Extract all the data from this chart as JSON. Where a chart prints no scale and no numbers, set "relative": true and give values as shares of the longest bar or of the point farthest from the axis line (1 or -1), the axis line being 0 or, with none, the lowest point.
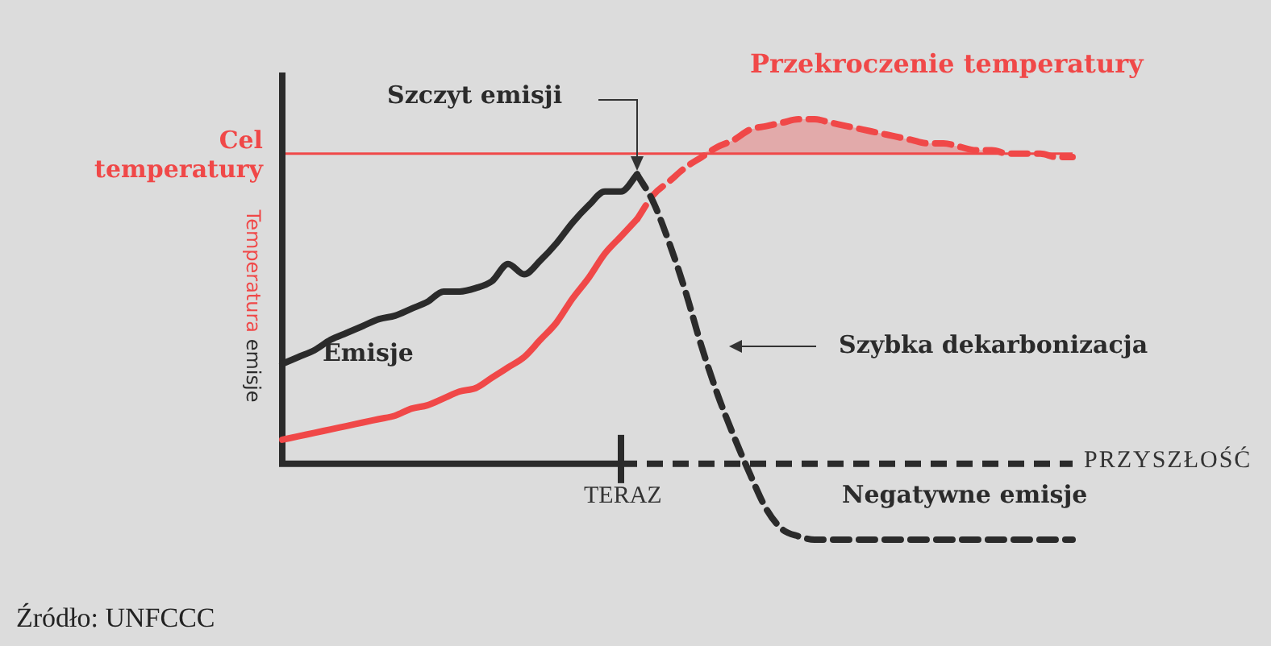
{
  "chart_data": {
    "type": "line",
    "relative": true,
    "ylabel": "Temperatura emisje",
    "xlabel": "PRZYSZŁOŚĆ",
    "categories": [
      null,
      null,
      null,
      null,
      null,
      null,
      null,
      null,
      null,
      null,
      null,
      null,
      null,
      null,
      null,
      null,
      null,
      null,
      null,
      null,
      null,
      null,
      null,
      null,
      null,
      null,
      null,
      null,
      null,
      null,
      null,
      null,
      null,
      null,
      null,
      null,
      null,
      null,
      null,
      null,
      null,
      null,
      null,
      null,
      null,
      null,
      null,
      null,
      null,
      null
    ],
    "series": [
      {
        "name": "Emisje",
        "color": "#2b2b2b",
        "line_style": "solid",
        "values": [
          0.29,
          0.31,
          0.33,
          0.36,
          0.38,
          0.4,
          0.42,
          0.43,
          0.45,
          0.47,
          0.5,
          0.5,
          0.51,
          0.53,
          0.58,
          0.55,
          0.59,
          0.64,
          0.7,
          0.75,
          0.79,
          0.79,
          0.84,
          null,
          null,
          null,
          null,
          null,
          null,
          null,
          null,
          null,
          null,
          null,
          null,
          null,
          null,
          null,
          null,
          null,
          null,
          null,
          null,
          null,
          null,
          null,
          null,
          null,
          null,
          null
        ]
      },
      {
        "color": "#2b2b2b",
        "line_style": "dashed",
        "values": [
          null,
          null,
          null,
          null,
          null,
          null,
          null,
          null,
          null,
          null,
          null,
          null,
          null,
          null,
          null,
          null,
          null,
          null,
          null,
          null,
          null,
          null,
          0.84,
          0.76,
          0.64,
          0.5,
          0.34,
          0.2,
          0.08,
          -0.03,
          -0.13,
          -0.19,
          -0.21,
          -0.22,
          -0.22,
          -0.22,
          -0.22,
          -0.22,
          -0.22,
          -0.22,
          -0.22,
          -0.22,
          -0.22,
          -0.22,
          -0.22,
          -0.22,
          -0.22,
          -0.22,
          -0.22,
          -0.22
        ]
      },
      {
        "color": "#f04848",
        "line_style": "solid",
        "values": [
          0.07,
          0.08,
          0.09,
          0.1,
          0.11,
          0.12,
          0.13,
          0.14,
          0.16,
          0.17,
          0.19,
          0.21,
          0.22,
          0.25,
          0.28,
          0.31,
          0.36,
          0.41,
          0.48,
          0.54,
          0.61,
          0.66,
          0.71,
          null,
          null,
          null,
          null,
          null,
          null,
          null,
          null,
          null,
          null,
          null,
          null,
          null,
          null,
          null,
          null,
          null,
          null,
          null,
          null,
          null,
          null,
          null,
          null,
          null,
          null,
          null
        ]
      },
      {
        "color": "#f04848",
        "line_style": "dashed",
        "values": [
          null,
          null,
          null,
          null,
          null,
          null,
          null,
          null,
          null,
          null,
          null,
          null,
          null,
          null,
          null,
          null,
          null,
          null,
          null,
          null,
          null,
          null,
          0.71,
          0.78,
          0.82,
          0.86,
          0.89,
          0.92,
          0.94,
          0.97,
          0.98,
          0.99,
          1.0,
          1.0,
          0.99,
          0.98,
          0.97,
          0.96,
          0.95,
          0.94,
          0.93,
          0.93,
          0.92,
          0.91,
          0.91,
          0.9,
          0.9,
          0.9,
          0.89,
          0.89
        ],
        "lower": [
          null,
          null,
          null,
          null,
          null,
          null,
          null,
          null,
          null,
          null,
          null,
          null,
          null,
          null,
          null,
          null,
          null,
          null,
          null,
          null,
          null,
          null,
          null,
          null,
          null,
          null,
          0.9,
          0.9,
          0.9,
          0.9,
          0.9,
          0.9,
          0.9,
          0.9,
          0.9,
          0.9,
          0.9,
          0.9,
          0.9,
          0.9,
          0.9,
          0.9,
          0.9,
          0.9,
          0.9,
          0.9,
          null,
          null,
          null,
          null
        ],
        "upper": [
          null,
          null,
          null,
          null,
          null,
          null,
          null,
          null,
          null,
          null,
          null,
          null,
          null,
          null,
          null,
          null,
          null,
          null,
          null,
          null,
          null,
          null,
          null,
          null,
          null,
          null,
          0.9,
          0.92,
          0.94,
          0.97,
          0.98,
          0.99,
          1.0,
          1.0,
          0.99,
          0.98,
          0.97,
          0.96,
          0.95,
          0.94,
          0.93,
          0.93,
          0.92,
          0.91,
          0.91,
          0.9,
          null,
          null,
          null,
          null
        ]
      }
    ],
    "ref_lines": [
      {
        "axis": "y",
        "value": 0.9,
        "label": "Cel temperatury",
        "color": "#f04848",
        "line_style": "solid"
      }
    ],
    "annotations": [
      "Szczyt emisji",
      "Przekroczenie temperatury",
      "Szybka dekarbonizacja",
      "Negatywne emisje",
      "Źródło: UNFCCC",
      "TERAZ"
    ]
  }
}
